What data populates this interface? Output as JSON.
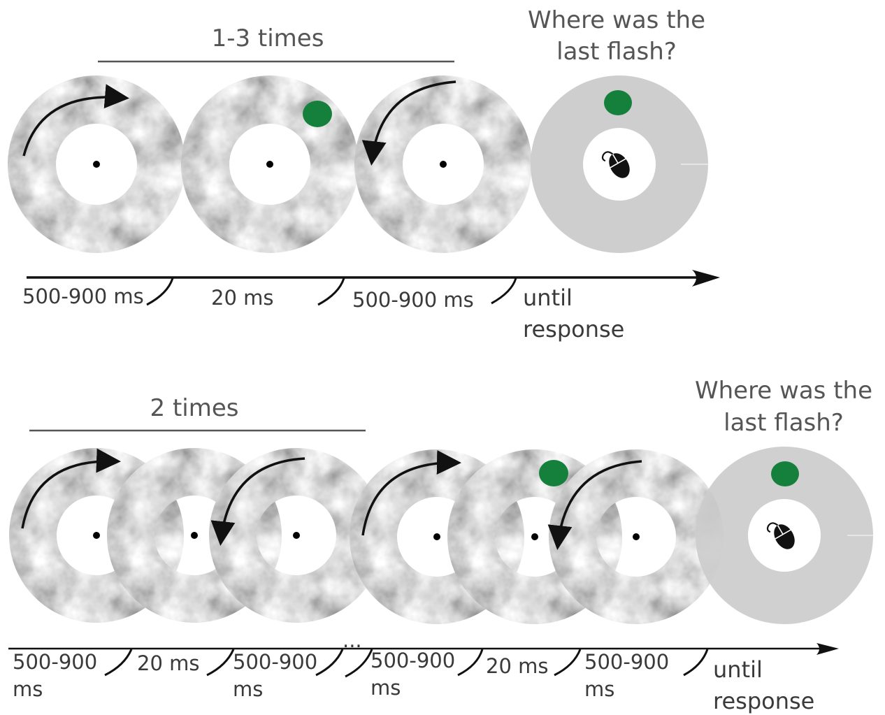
{
  "panel_top": {
    "repeat_label": "1-3 times",
    "question_line1": "Where was the",
    "question_line2": "last flash?",
    "timeline": {
      "segment_1": "500-900 ms",
      "segment_2": "20 ms",
      "segment_3": "500-900 ms",
      "final_line1": "until",
      "final_line2": "response"
    }
  },
  "panel_bottom": {
    "repeat_label": "2 times",
    "question_line1": "Where was the",
    "question_line2": "last flash?",
    "timeline": {
      "segment_1_line1": "500-900",
      "segment_1_line2": "ms",
      "segment_2": "20 ms",
      "segment_3_line1": "500-900",
      "segment_3_line2": "ms",
      "ellipsis": "...",
      "segment_4_line1": "500-900",
      "segment_4_line2": "ms",
      "segment_5": "20 ms",
      "segment_6_line1": "500-900",
      "segment_6_line2": "ms",
      "final_line1": "until",
      "final_line2": "response"
    }
  },
  "colors": {
    "flash": "#14803c",
    "response_ring": "#cccccc",
    "text": "#555555",
    "axis": "#111111"
  },
  "icons": {
    "response": "computer-mouse-icon",
    "rotation": "curved-arrow-icon",
    "fixation": "fixation-dot-icon"
  }
}
